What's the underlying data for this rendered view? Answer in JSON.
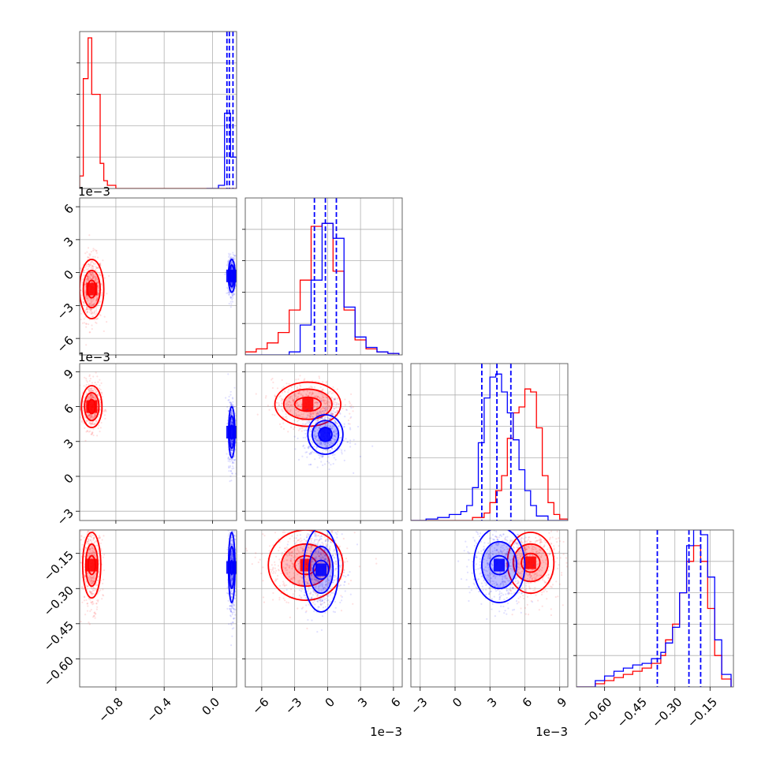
{
  "chart_data": {
    "type": "corner",
    "title": "",
    "colors": {
      "series_a": "#ff0000",
      "series_b": "#0000ff"
    },
    "series": [
      {
        "color": "#ff0000"
      },
      {
        "color": "#0000ff"
      }
    ],
    "grid": true,
    "variables": [
      {
        "index": 0,
        "xlim": [
          -1.1,
          0.2
        ],
        "ticks": [
          -0.8,
          -0.4,
          0.0
        ],
        "tick_labels": [
          "−0.8",
          "−0.4",
          "0.0"
        ],
        "offset": ""
      },
      {
        "index": 1,
        "xlim": [
          -7.5,
          6.8
        ],
        "ticks": [
          -6,
          -3,
          0,
          3,
          6
        ],
        "tick_labels": [
          "−6",
          "−3",
          "0",
          "3",
          "6"
        ],
        "offset": "1e−3"
      },
      {
        "index": 2,
        "xlim": [
          -3.8,
          9.7
        ],
        "ticks": [
          -3,
          0,
          3,
          6,
          9
        ],
        "tick_labels": [
          "−3",
          "0",
          "3",
          "6",
          "9"
        ],
        "offset": "1e−3"
      },
      {
        "index": 3,
        "xlim": [
          -0.72,
          -0.05
        ],
        "ticks": [
          -0.6,
          -0.45,
          -0.3,
          -0.15
        ],
        "tick_labels": [
          "−0.60",
          "−0.45",
          "−0.30",
          "−0.15"
        ],
        "offset": ""
      }
    ],
    "y_axes": [
      {
        "row": 1,
        "ticks": [
          6,
          3,
          0,
          -3,
          -6
        ],
        "tick_labels": [
          "6",
          "3",
          "0",
          "−3",
          "−6"
        ],
        "offset": "1e−3"
      },
      {
        "row": 2,
        "ticks": [
          9,
          6,
          3,
          0,
          -3
        ],
        "tick_labels": [
          "9",
          "6",
          "3",
          "0",
          "−3"
        ],
        "offset": "1e−3"
      },
      {
        "row": 3,
        "ticks": [
          -0.15,
          -0.3,
          -0.45,
          -0.6
        ],
        "tick_labels": [
          "−0.15",
          "−0.30",
          "−0.45",
          "−0.60"
        ],
        "offset": ""
      }
    ],
    "histograms": [
      {
        "variable": 0,
        "ylim": [
          0,
          1.0
        ],
        "series": [
          {
            "color": "#ff0000",
            "bins": [
              -1.1,
              -1.07,
              -1.03,
              -1.0,
              -0.97,
              -0.93,
              -0.9,
              -0.87,
              -0.8,
              0.2
            ],
            "counts": [
              0.08,
              0.7,
              0.96,
              0.6,
              0.6,
              0.16,
              0.05,
              0.02,
              0.0
            ]
          },
          {
            "color": "#0000ff",
            "bins": [
              -0.05,
              0.05,
              0.1,
              0.15,
              0.2
            ],
            "counts": [
              0.0,
              0.02,
              0.48,
              0.2
            ]
          }
        ],
        "quantiles": [
          0.12,
          0.14,
          0.17
        ]
      },
      {
        "variable": 1,
        "ylim": [
          0,
          1.05
        ],
        "series": [
          {
            "color": "#ff0000",
            "bins": [
              -7.5,
              -6.5,
              -5.5,
              -4.5,
              -3.5,
              -2.5,
              -1.5,
              -0.5,
              0.5,
              1.5,
              2.5,
              3.5,
              4.5,
              5.5,
              6.5
            ],
            "counts": [
              0.02,
              0.04,
              0.08,
              0.15,
              0.3,
              0.5,
              0.86,
              0.88,
              0.56,
              0.3,
              0.1,
              0.04,
              0.02,
              0.01
            ]
          },
          {
            "color": "#0000ff",
            "bins": [
              -7.5,
              -4.5,
              -3.5,
              -2.5,
              -1.5,
              -0.5,
              0.5,
              1.5,
              2.5,
              3.5,
              4.5,
              5.5,
              6.5
            ],
            "counts": [
              0.0,
              0.0,
              0.02,
              0.2,
              0.5,
              0.88,
              0.78,
              0.32,
              0.12,
              0.05,
              0.02,
              0.01
            ]
          }
        ],
        "quantiles": [
          -1.2,
          -0.2,
          0.8
        ]
      },
      {
        "variable": 2,
        "ylim": [
          0,
          1.05
        ],
        "series": [
          {
            "color": "#ff0000",
            "bins": [
              -3.8,
              1.5,
              2.5,
              3.0,
              3.5,
              4.0,
              4.5,
              5.0,
              5.5,
              6.0,
              6.5,
              7.0,
              7.5,
              8.0,
              8.5,
              9.0,
              9.7
            ],
            "counts": [
              0.0,
              0.02,
              0.05,
              0.12,
              0.2,
              0.3,
              0.55,
              0.72,
              0.76,
              0.88,
              0.86,
              0.62,
              0.3,
              0.12,
              0.04,
              0.01
            ]
          },
          {
            "color": "#0000ff",
            "bins": [
              -3.8,
              -2.5,
              -1.5,
              -0.5,
              0.5,
              1.0,
              1.5,
              2.0,
              2.5,
              3.0,
              3.5,
              4.0,
              4.5,
              5.0,
              5.5,
              6.0,
              6.5,
              7.0,
              8.0,
              9.7
            ],
            "counts": [
              0.0,
              0.01,
              0.02,
              0.04,
              0.06,
              0.1,
              0.22,
              0.52,
              0.82,
              0.96,
              0.98,
              0.86,
              0.72,
              0.54,
              0.34,
              0.2,
              0.1,
              0.03,
              0.0
            ]
          }
        ],
        "quantiles": [
          2.3,
          3.6,
          4.8
        ]
      },
      {
        "variable": 3,
        "ylim": [
          0,
          1.0
        ],
        "series": [
          {
            "color": "#ff0000",
            "bins": [
              -0.72,
              -0.64,
              -0.6,
              -0.56,
              -0.52,
              -0.48,
              -0.44,
              -0.4,
              -0.36,
              -0.34,
              -0.31,
              -0.28,
              -0.25,
              -0.22,
              -0.19,
              -0.16,
              -0.13,
              -0.1,
              -0.06
            ],
            "counts": [
              0.0,
              0.02,
              0.04,
              0.06,
              0.08,
              0.1,
              0.12,
              0.15,
              0.2,
              0.3,
              0.4,
              0.6,
              0.8,
              0.9,
              0.8,
              0.5,
              0.2,
              0.05
            ]
          },
          {
            "color": "#0000ff",
            "bins": [
              -0.72,
              -0.64,
              -0.6,
              -0.56,
              -0.52,
              -0.48,
              -0.44,
              -0.4,
              -0.36,
              -0.34,
              -0.31,
              -0.28,
              -0.25,
              -0.22,
              -0.19,
              -0.16,
              -0.13,
              -0.1,
              -0.06
            ],
            "counts": [
              0.0,
              0.04,
              0.07,
              0.1,
              0.12,
              0.14,
              0.15,
              0.18,
              0.22,
              0.28,
              0.38,
              0.6,
              0.9,
              1.0,
              0.97,
              0.7,
              0.3,
              0.08
            ]
          }
        ],
        "quantiles": [
          -0.375,
          -0.24,
          -0.19
        ]
      }
    ],
    "scatter_panels": [
      {
        "row": 1,
        "col": 0,
        "series": [
          {
            "color": "#ff0000",
            "center": [
              -1.0,
              -1.5
            ],
            "spread": [
              0.045,
              1.5
            ],
            "contours": [
              [
                0.035,
                0.8
              ],
              [
                0.07,
                1.7
              ],
              [
                0.1,
                2.7
              ]
            ]
          },
          {
            "color": "#0000ff",
            "center": [
              0.16,
              -0.3
            ],
            "spread": [
              0.015,
              0.9
            ],
            "contours": [
              [
                0.012,
                0.5
              ],
              [
                0.02,
                1.0
              ],
              [
                0.028,
                1.5
              ]
            ]
          }
        ]
      },
      {
        "row": 2,
        "col": 0,
        "series": [
          {
            "color": "#ff0000",
            "center": [
              -1.0,
              6.0
            ],
            "spread": [
              0.04,
              1.0
            ],
            "contours": [
              [
                0.03,
                0.6
              ],
              [
                0.06,
                1.2
              ],
              [
                0.085,
                1.8
              ]
            ]
          },
          {
            "color": "#0000ff",
            "center": [
              0.16,
              3.8
            ],
            "spread": [
              0.015,
              1.4
            ],
            "contours": [
              [
                0.012,
                0.6
              ],
              [
                0.02,
                1.4
              ],
              [
                0.026,
                2.2
              ]
            ]
          }
        ]
      },
      {
        "row": 2,
        "col": 1,
        "series": [
          {
            "color": "#ff0000",
            "center": [
              -1.8,
              6.2
            ],
            "spread": [
              1.6,
              1.0
            ],
            "contours": [
              [
                1.2,
                0.6
              ],
              [
                2.2,
                1.3
              ],
              [
                3.0,
                1.9
              ]
            ]
          },
          {
            "color": "#0000ff",
            "center": [
              -0.2,
              3.6
            ],
            "spread": [
              1.0,
              1.1
            ],
            "contours": [
              [
                0.6,
                0.6
              ],
              [
                1.2,
                1.2
              ],
              [
                1.6,
                1.7
              ]
            ]
          }
        ]
      },
      {
        "row": 3,
        "col": 0,
        "series": [
          {
            "color": "#ff0000",
            "center": [
              -1.0,
              -0.2
            ],
            "spread": [
              0.04,
              0.09
            ],
            "contours": [
              [
                0.03,
                0.04
              ],
              [
                0.05,
                0.09
              ],
              [
                0.075,
                0.14
              ]
            ]
          },
          {
            "color": "#0000ff",
            "center": [
              0.16,
              -0.21
            ],
            "spread": [
              0.015,
              0.1
            ],
            "contours": [
              [
                0.01,
                0.03
              ],
              [
                0.02,
                0.09
              ],
              [
                0.027,
                0.15
              ]
            ]
          }
        ]
      },
      {
        "row": 3,
        "col": 1,
        "series": [
          {
            "color": "#ff0000",
            "center": [
              -2.0,
              -0.2
            ],
            "spread": [
              1.8,
              0.08
            ],
            "contours": [
              [
                1.0,
                0.04
              ],
              [
                2.2,
                0.09
              ],
              [
                3.4,
                0.15
              ]
            ]
          },
          {
            "color": "#0000ff",
            "center": [
              -0.6,
              -0.22
            ],
            "spread": [
              1.0,
              0.09
            ],
            "contours": [
              [
                0.7,
                0.04
              ],
              [
                1.1,
                0.1
              ],
              [
                1.6,
                0.18
              ]
            ]
          }
        ]
      },
      {
        "row": 3,
        "col": 2,
        "series": [
          {
            "color": "#ff0000",
            "center": [
              6.5,
              -0.19
            ],
            "spread": [
              1.2,
              0.08
            ],
            "contours": [
              [
                0.8,
                0.04
              ],
              [
                1.5,
                0.08
              ],
              [
                2.0,
                0.13
              ]
            ]
          },
          {
            "color": "#0000ff",
            "center": [
              3.8,
              -0.2
            ],
            "spread": [
              1.2,
              0.09
            ],
            "contours": [
              [
                0.8,
                0.04
              ],
              [
                1.5,
                0.1
              ],
              [
                2.2,
                0.16
              ]
            ]
          }
        ]
      }
    ]
  }
}
